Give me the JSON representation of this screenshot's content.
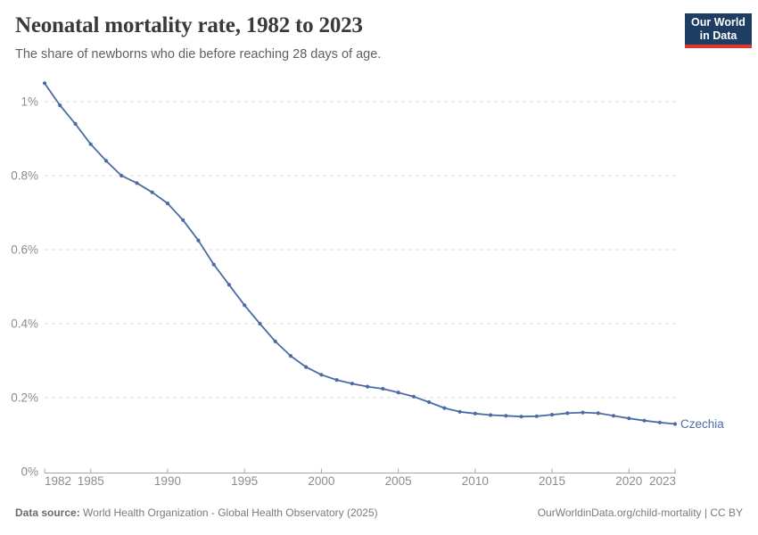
{
  "header": {
    "title": "Neonatal mortality rate, 1982 to 2023",
    "subtitle": "The share of newborns who die before reaching 28 days of age.",
    "logo": {
      "line1": "Our World",
      "line2": "in Data",
      "bg_color": "#1d3d63",
      "accent_color": "#e0362c"
    }
  },
  "chart_data": {
    "type": "line",
    "title": "Neonatal mortality rate, 1982 to 2023",
    "xlabel": "",
    "ylabel": "",
    "unit": "%",
    "xlim": [
      1982,
      2023
    ],
    "ylim": [
      0,
      1.08
    ],
    "grid": "horizontal-dashed",
    "legend_position": "end-of-line",
    "x": [
      1982,
      1983,
      1984,
      1985,
      1986,
      1987,
      1988,
      1989,
      1990,
      1991,
      1992,
      1993,
      1994,
      1995,
      1996,
      1997,
      1998,
      1999,
      2000,
      2001,
      2002,
      2003,
      2004,
      2005,
      2006,
      2007,
      2008,
      2009,
      2010,
      2011,
      2012,
      2013,
      2014,
      2015,
      2016,
      2017,
      2018,
      2019,
      2020,
      2021,
      2022,
      2023
    ],
    "series": [
      {
        "name": "Czechia",
        "color": "#4c6ba5",
        "values": [
          1.05,
          0.99,
          0.94,
          0.885,
          0.84,
          0.8,
          0.78,
          0.755,
          0.725,
          0.68,
          0.625,
          0.56,
          0.505,
          0.45,
          0.4,
          0.352,
          0.313,
          0.283,
          0.262,
          0.248,
          0.238,
          0.23,
          0.224,
          0.214,
          0.203,
          0.188,
          0.172,
          0.162,
          0.157,
          0.153,
          0.151,
          0.149,
          0.15,
          0.154,
          0.158,
          0.16,
          0.158,
          0.151,
          0.144,
          0.138,
          0.133,
          0.129
        ]
      }
    ],
    "x_ticks": [
      1982,
      1985,
      1990,
      1995,
      2000,
      2005,
      2010,
      2015,
      2020,
      2023
    ],
    "y_ticks": [
      {
        "label": "0%",
        "value": 0
      },
      {
        "label": "0.2%",
        "value": 0.2
      },
      {
        "label": "0.4%",
        "value": 0.4
      },
      {
        "label": "0.6%",
        "value": 0.6
      },
      {
        "label": "0.8%",
        "value": 0.8
      },
      {
        "label": "1%",
        "value": 1
      }
    ]
  },
  "footer": {
    "datasource_label": "Data source:",
    "datasource_text": " World Health Organization - Global Health Observatory (2025)",
    "link_text": "OurWorldinData.org/child-mortality | CC BY"
  }
}
